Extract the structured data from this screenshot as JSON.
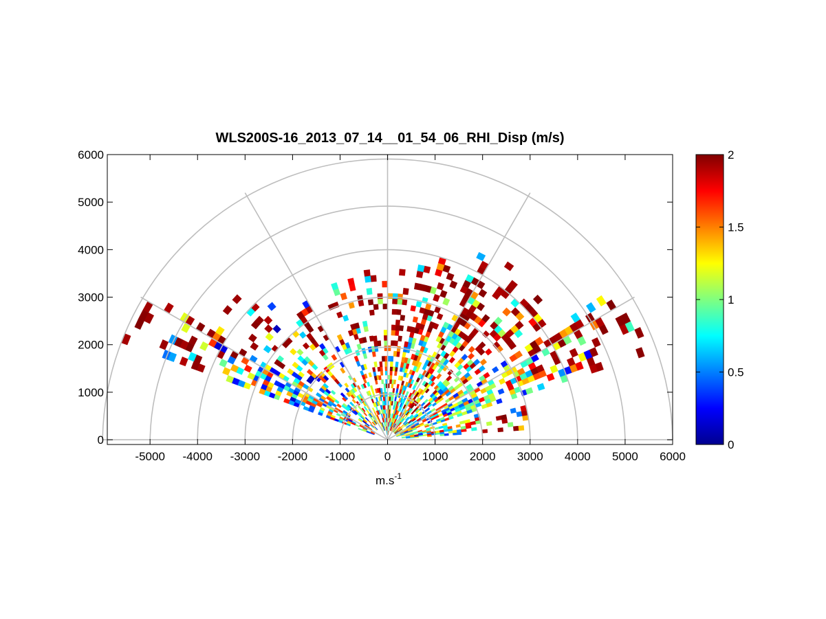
{
  "chart_data": {
    "type": "heatmap",
    "subtype": "polar-rhi",
    "title": "WLS200S-16_2013_07_14__01_54_06_RHI_Disp (m/s)",
    "xlabel": "m.s",
    "xlabel_superscript": "-1",
    "ylabel": "",
    "xlim": [
      -5900,
      6000
    ],
    "ylim": [
      -100,
      6000
    ],
    "x_ticks": [
      "-5000",
      "-4000",
      "-3000",
      "-2000",
      "-1000",
      "0",
      "1000",
      "2000",
      "3000",
      "4000",
      "5000",
      "6000"
    ],
    "y_ticks": [
      "0",
      "1000",
      "2000",
      "3000",
      "4000",
      "5000",
      "6000"
    ],
    "polar_grid": {
      "rings": [
        1000,
        2000,
        3000,
        4000,
        5000,
        6000
      ],
      "spokes_deg": [
        0,
        30,
        60,
        90,
        120,
        150,
        180
      ]
    },
    "colorbar": {
      "colormap": "jet",
      "clim": [
        0,
        2
      ],
      "ticks": [
        "0",
        "0.5",
        "1",
        "1.5",
        "2"
      ]
    },
    "grid": true,
    "sectors": [
      {
        "az_deg": [
          148,
          160
        ],
        "range_m": [
          300,
          5900
        ],
        "mean": 0.95,
        "density": 0.75
      },
      {
        "az_deg": [
          134,
          147
        ],
        "range_m": [
          300,
          4500
        ],
        "mean": 0.9,
        "density": 0.6
      },
      {
        "az_deg": [
          118,
          132
        ],
        "range_m": [
          400,
          4000
        ],
        "mean": 1.1,
        "density": 0.45
      },
      {
        "az_deg": [
          98,
          115
        ],
        "range_m": [
          200,
          3600
        ],
        "mean": 1.2,
        "density": 0.5
      },
      {
        "az_deg": [
          82,
          97
        ],
        "range_m": [
          100,
          3500
        ],
        "mean": 1.3,
        "density": 0.8
      },
      {
        "az_deg": [
          66,
          80
        ],
        "range_m": [
          200,
          4000
        ],
        "mean": 1.15,
        "density": 0.9
      },
      {
        "az_deg": [
          50,
          64
        ],
        "range_m": [
          200,
          4500
        ],
        "mean": 1.35,
        "density": 0.85
      },
      {
        "az_deg": [
          36,
          48
        ],
        "range_m": [
          200,
          4500
        ],
        "mean": 1.2,
        "density": 0.8
      },
      {
        "az_deg": [
          18,
          34
        ],
        "range_m": [
          200,
          5700
        ],
        "mean": 1.0,
        "density": 0.8
      },
      {
        "az_deg": [
          4,
          16
        ],
        "range_m": [
          300,
          3200
        ],
        "mean": 1.1,
        "density": 0.7
      }
    ]
  }
}
